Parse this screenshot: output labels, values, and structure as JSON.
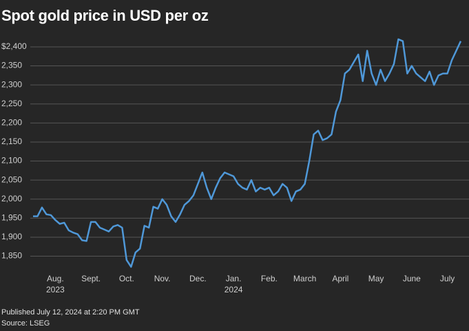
{
  "chart_data": {
    "type": "line",
    "title": "Spot gold price in USD per oz",
    "footnote": "Published July 12, 2024 at 2:20 PM GMT",
    "source": "Source: LSEG",
    "categories": [
      null,
      null,
      null,
      null,
      null,
      "Aug.\n2023",
      null,
      null,
      null,
      null,
      null,
      null,
      null,
      "Sept.",
      null,
      null,
      null,
      null,
      null,
      null,
      null,
      "Oct.",
      null,
      null,
      null,
      null,
      null,
      null,
      null,
      "Nov.",
      null,
      null,
      null,
      null,
      null,
      null,
      null,
      "Dec.",
      null,
      null,
      null,
      null,
      null,
      null,
      null,
      "Jan.\n2024",
      null,
      null,
      null,
      null,
      null,
      null,
      null,
      "Feb.",
      null,
      null,
      null,
      null,
      null,
      null,
      null,
      "March",
      null,
      null,
      null,
      null,
      null,
      null,
      null,
      "April",
      null,
      null,
      null,
      null,
      null,
      null,
      null,
      "May",
      null,
      null,
      null,
      null,
      null,
      null,
      null,
      "June",
      null,
      null,
      null,
      null,
      null,
      null,
      null,
      "July",
      null,
      null,
      null
    ],
    "series": [
      {
        "name": "Spot gold",
        "color": "#4f98d8",
        "values": [
          1955,
          1955,
          1978,
          1960,
          1958,
          1945,
          1935,
          1938,
          1918,
          1912,
          1908,
          1892,
          1890,
          1940,
          1940,
          1925,
          1920,
          1915,
          1928,
          1932,
          1925,
          1840,
          1822,
          1860,
          1870,
          1930,
          1925,
          1980,
          1975,
          2000,
          1985,
          1955,
          1940,
          1960,
          1985,
          1995,
          2010,
          2040,
          2070,
          2030,
          2000,
          2030,
          2055,
          2070,
          2065,
          2060,
          2040,
          2030,
          2025,
          2050,
          2020,
          2030,
          2025,
          2030,
          2010,
          2020,
          2040,
          2030,
          1995,
          2020,
          2025,
          2040,
          2100,
          2170,
          2180,
          2155,
          2160,
          2170,
          2230,
          2260,
          2330,
          2340,
          2360,
          2380,
          2310,
          2390,
          2330,
          2300,
          2340,
          2310,
          2330,
          2355,
          2420,
          2415,
          2330,
          2350,
          2330,
          2320,
          2310,
          2335,
          2300,
          2325,
          2330,
          2330,
          2365,
          2390,
          2415
        ]
      }
    ],
    "ylim": [
      1822,
      2432
    ],
    "yticks": [
      {
        "value": 1850,
        "label": "1,850"
      },
      {
        "value": 1900,
        "label": "1,900"
      },
      {
        "value": 1950,
        "label": "1,950"
      },
      {
        "value": 2000,
        "label": "2,000"
      },
      {
        "value": 2050,
        "label": "2,050"
      },
      {
        "value": 2100,
        "label": "2,100"
      },
      {
        "value": 2150,
        "label": "2,150"
      },
      {
        "value": 2200,
        "label": "2,200"
      },
      {
        "value": 2250,
        "label": "2,250"
      },
      {
        "value": 2300,
        "label": "2,300"
      },
      {
        "value": 2350,
        "label": "2,350"
      },
      {
        "value": 2400,
        "label": "$2,400"
      }
    ],
    "grid": true
  }
}
